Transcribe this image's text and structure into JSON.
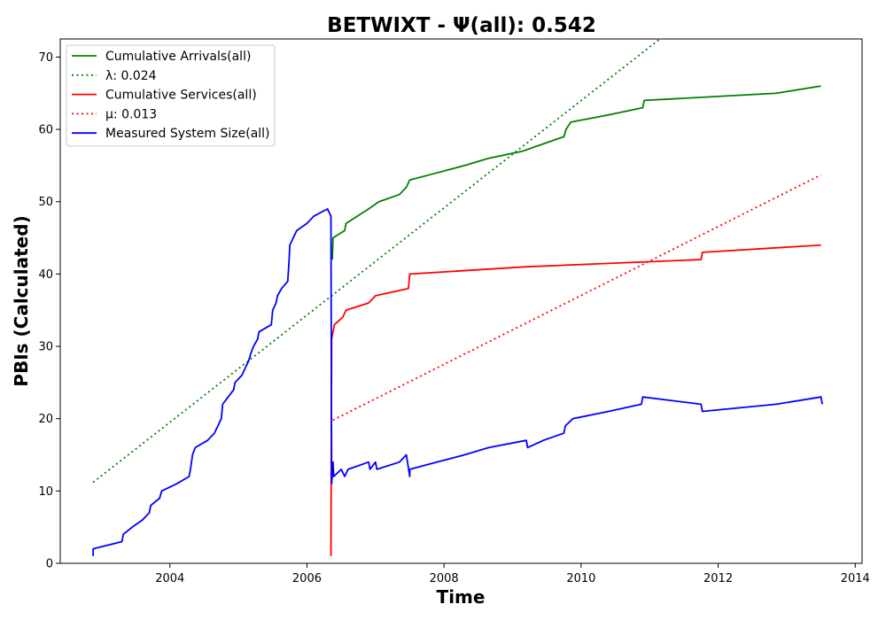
{
  "chart_data": {
    "type": "line",
    "title": "BETWIXT -  Ψ(all): 0.542",
    "xlabel": "Time",
    "ylabel": "PBIs (Calculated)",
    "xlim": [
      2002.4,
      2014.1
    ],
    "ylim": [
      0,
      72.5
    ],
    "x_ticks": [
      2004,
      2006,
      2008,
      2010,
      2012,
      2014
    ],
    "y_ticks": [
      0,
      10,
      20,
      30,
      40,
      50,
      60,
      70
    ],
    "grid": false,
    "legend_position": "top-left",
    "legend_entries": [
      {
        "label": "Cumulative Arrivals(all)",
        "color": "#008000",
        "style": "solid"
      },
      {
        "label": "λ: 0.024",
        "color": "#008000",
        "style": "dotted"
      },
      {
        "label": "Cumulative Services(all)",
        "color": "#ff0000",
        "style": "solid"
      },
      {
        "label": "μ: 0.013",
        "color": "#ff0000",
        "style": "dotted"
      },
      {
        "label": "Measured System Size(all)",
        "color": "#0000ff",
        "style": "solid"
      }
    ],
    "series": [
      {
        "name": "Cumulative Arrivals(all)",
        "color": "#008000",
        "style": "solid",
        "points": [
          [
            2006.37,
            42
          ],
          [
            2006.38,
            45
          ],
          [
            2006.55,
            46
          ],
          [
            2006.57,
            47
          ],
          [
            2006.9,
            49
          ],
          [
            2007.05,
            50
          ],
          [
            2007.35,
            51
          ],
          [
            2007.45,
            52
          ],
          [
            2007.5,
            53
          ],
          [
            2007.9,
            54
          ],
          [
            2008.3,
            55
          ],
          [
            2008.65,
            56
          ],
          [
            2009.15,
            57
          ],
          [
            2009.45,
            58
          ],
          [
            2009.75,
            59
          ],
          [
            2009.78,
            60
          ],
          [
            2009.85,
            61
          ],
          [
            2010.4,
            62
          ],
          [
            2010.9,
            63
          ],
          [
            2010.92,
            64
          ],
          [
            2012.85,
            65
          ],
          [
            2013.5,
            66
          ]
        ]
      },
      {
        "name": "λ: 0.024",
        "color": "#008000",
        "style": "dotted",
        "points": [
          [
            2002.88,
            11.2
          ],
          [
            2011.15,
            72.5
          ]
        ]
      },
      {
        "name": "Cumulative Services(all)",
        "color": "#ff0000",
        "style": "solid",
        "points": [
          [
            2006.35,
            1
          ],
          [
            2006.36,
            31
          ],
          [
            2006.38,
            32
          ],
          [
            2006.4,
            33
          ],
          [
            2006.52,
            34
          ],
          [
            2006.57,
            35
          ],
          [
            2006.9,
            36
          ],
          [
            2007.0,
            37
          ],
          [
            2007.48,
            38
          ],
          [
            2007.5,
            40
          ],
          [
            2009.2,
            41
          ],
          [
            2011.75,
            42
          ],
          [
            2011.77,
            43
          ],
          [
            2013.5,
            44
          ]
        ]
      },
      {
        "name": "μ: 0.013",
        "color": "#ff0000",
        "style": "dotted",
        "points": [
          [
            2006.38,
            19.8
          ],
          [
            2013.5,
            53.7
          ]
        ]
      },
      {
        "name": "Measured System Size(all)",
        "color": "#0000ff",
        "style": "solid",
        "points": [
          [
            2002.88,
            1
          ],
          [
            2002.88,
            2
          ],
          [
            2003.3,
            3
          ],
          [
            2003.32,
            4
          ],
          [
            2003.45,
            5
          ],
          [
            2003.6,
            6
          ],
          [
            2003.7,
            7
          ],
          [
            2003.72,
            8
          ],
          [
            2003.85,
            9
          ],
          [
            2003.88,
            10
          ],
          [
            2004.1,
            11
          ],
          [
            2004.28,
            12
          ],
          [
            2004.3,
            13
          ],
          [
            2004.33,
            15
          ],
          [
            2004.37,
            16
          ],
          [
            2004.55,
            17
          ],
          [
            2004.65,
            18
          ],
          [
            2004.7,
            19
          ],
          [
            2004.75,
            20
          ],
          [
            2004.77,
            22
          ],
          [
            2004.85,
            23
          ],
          [
            2004.93,
            24
          ],
          [
            2004.95,
            25
          ],
          [
            2005.05,
            26
          ],
          [
            2005.1,
            27
          ],
          [
            2005.15,
            28
          ],
          [
            2005.18,
            29
          ],
          [
            2005.22,
            30
          ],
          [
            2005.28,
            31
          ],
          [
            2005.3,
            32
          ],
          [
            2005.48,
            33
          ],
          [
            2005.5,
            35
          ],
          [
            2005.55,
            36
          ],
          [
            2005.57,
            37
          ],
          [
            2005.63,
            38
          ],
          [
            2005.72,
            39
          ],
          [
            2005.74,
            42
          ],
          [
            2005.75,
            44
          ],
          [
            2005.8,
            45
          ],
          [
            2005.85,
            46
          ],
          [
            2006.0,
            47
          ],
          [
            2006.1,
            48
          ],
          [
            2006.3,
            49
          ],
          [
            2006.35,
            48
          ],
          [
            2006.36,
            11
          ],
          [
            2006.38,
            14
          ],
          [
            2006.39,
            12
          ],
          [
            2006.5,
            13
          ],
          [
            2006.55,
            12
          ],
          [
            2006.6,
            13
          ],
          [
            2006.9,
            14
          ],
          [
            2006.92,
            13
          ],
          [
            2007.0,
            14
          ],
          [
            2007.02,
            13
          ],
          [
            2007.35,
            14
          ],
          [
            2007.45,
            15
          ],
          [
            2007.5,
            12
          ],
          [
            2007.5,
            13
          ],
          [
            2007.9,
            14
          ],
          [
            2008.3,
            15
          ],
          [
            2008.65,
            16
          ],
          [
            2009.2,
            17
          ],
          [
            2009.22,
            16
          ],
          [
            2009.45,
            17
          ],
          [
            2009.75,
            18
          ],
          [
            2009.77,
            19
          ],
          [
            2009.88,
            20
          ],
          [
            2010.4,
            21
          ],
          [
            2010.88,
            22
          ],
          [
            2010.9,
            23
          ],
          [
            2011.75,
            22
          ],
          [
            2011.77,
            21
          ],
          [
            2012.85,
            22
          ],
          [
            2013.5,
            23
          ],
          [
            2013.52,
            22
          ]
        ]
      }
    ]
  }
}
